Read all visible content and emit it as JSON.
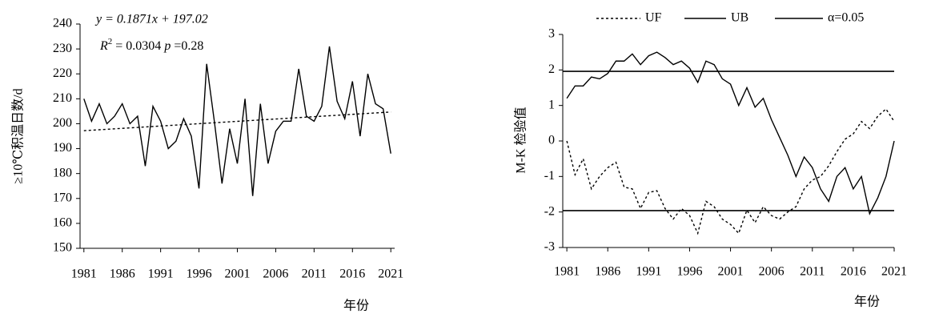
{
  "chart_data": [
    {
      "type": "line",
      "y_label": "≥10℃积温日数/d",
      "x_label": "年份",
      "annotation_1": "y = 0.1871x + 197.02",
      "annotation_2": [
        "R",
        "2",
        " = 0.0304  ",
        "p",
        " =0.28"
      ],
      "x": [
        1981,
        1982,
        1983,
        1984,
        1985,
        1986,
        1987,
        1988,
        1989,
        1990,
        1991,
        1992,
        1993,
        1994,
        1995,
        1996,
        1997,
        1998,
        1999,
        2000,
        2001,
        2002,
        2003,
        2004,
        2005,
        2006,
        2007,
        2008,
        2009,
        2010,
        2011,
        2012,
        2013,
        2014,
        2015,
        2016,
        2017,
        2018,
        2019,
        2020,
        2021
      ],
      "values": [
        210,
        201,
        208,
        200,
        203,
        208,
        200,
        203,
        183,
        207,
        201,
        190,
        193,
        202,
        195,
        174,
        224,
        201,
        176,
        198,
        184,
        210,
        171,
        208,
        184,
        197,
        201,
        201,
        222,
        203,
        201,
        207,
        231,
        209,
        202,
        217,
        195,
        220,
        208,
        206,
        188
      ],
      "color": "#000000",
      "trend": {
        "x": [
          1981,
          2021
        ],
        "values": [
          197.2,
          204.7
        ],
        "color": "#000000"
      },
      "xlim": [
        1980.5,
        2021.5
      ],
      "xticks": [
        1981,
        1986,
        1991,
        1996,
        2001,
        2006,
        2011,
        2016,
        2021
      ],
      "ylim": [
        150,
        240
      ],
      "yticks": [
        150,
        160,
        170,
        180,
        190,
        200,
        210,
        220,
        230,
        240
      ],
      "grid": false
    },
    {
      "type": "line",
      "y_label": "M-K 检验值",
      "x_label": "年份",
      "x": [
        1981,
        1982,
        1983,
        1984,
        1985,
        1986,
        1987,
        1988,
        1989,
        1990,
        1991,
        1992,
        1993,
        1994,
        1995,
        1996,
        1997,
        1998,
        1999,
        2000,
        2001,
        2002,
        2003,
        2004,
        2005,
        2006,
        2007,
        2008,
        2009,
        2010,
        2011,
        2012,
        2013,
        2014,
        2015,
        2016,
        2017,
        2018,
        2019,
        2020,
        2021
      ],
      "series": [
        {
          "name": "UF",
          "color": "#000000",
          "dashed": true,
          "values": [
            0,
            -0.95,
            -0.5,
            -1.35,
            -1.0,
            -0.75,
            -0.6,
            -1.3,
            -1.35,
            -1.9,
            -1.45,
            -1.4,
            -1.9,
            -2.2,
            -1.9,
            -2.1,
            -2.6,
            -1.7,
            -1.85,
            -2.2,
            -2.35,
            -2.6,
            -1.95,
            -2.3,
            -1.85,
            -2.1,
            -2.2,
            -2.0,
            -1.85,
            -1.35,
            -1.1,
            -1.0,
            -0.7,
            -0.3,
            0.05,
            0.2,
            0.55,
            0.35,
            0.7,
            0.9,
            0.55
          ]
        },
        {
          "name": "UB",
          "color": "#000000",
          "dashed": false,
          "values": [
            1.2,
            1.55,
            1.55,
            1.8,
            1.75,
            1.9,
            2.25,
            2.25,
            2.45,
            2.15,
            2.4,
            2.5,
            2.35,
            2.15,
            2.25,
            2.05,
            1.65,
            2.25,
            2.15,
            1.75,
            1.6,
            1.0,
            1.5,
            0.95,
            1.2,
            0.6,
            0.1,
            -0.4,
            -1.0,
            -0.45,
            -0.75,
            -1.35,
            -1.7,
            -1.0,
            -0.75,
            -1.35,
            -1.0,
            -2.05,
            -1.6,
            -1.0,
            0.0
          ]
        }
      ],
      "reference_lines": {
        "name": "α=0.05",
        "color": "#000000",
        "values": [
          1.96,
          -1.96
        ]
      },
      "xlim": [
        1980.5,
        2021
      ],
      "xticks": [
        1981,
        1986,
        1991,
        1996,
        2001,
        2006,
        2011,
        2016,
        2021
      ],
      "ylim": [
        -3,
        3
      ],
      "yticks": [
        -3,
        -2,
        -1,
        0,
        1,
        2,
        3
      ],
      "grid": false,
      "legend": "top"
    }
  ]
}
